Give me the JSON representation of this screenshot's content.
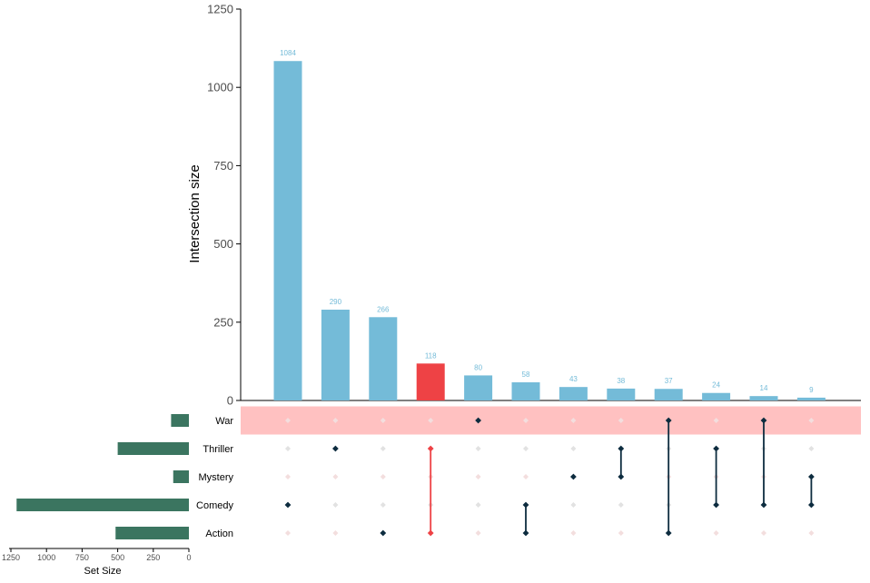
{
  "chart_data": {
    "type": "bar",
    "subtype": "upset",
    "intersections": {
      "ylabel": "Intersection size",
      "ylim": [
        0,
        1250
      ],
      "yticks": [
        "0",
        "250",
        "500",
        "750",
        "1000",
        "1250"
      ],
      "items": [
        {
          "value": 1084,
          "label": "1084",
          "sets": [
            "Comedy"
          ],
          "highlight": false
        },
        {
          "value": 290,
          "label": "290",
          "sets": [
            "Thriller"
          ],
          "highlight": false
        },
        {
          "value": 266,
          "label": "266",
          "sets": [
            "Action"
          ],
          "highlight": false
        },
        {
          "value": 118,
          "label": "118",
          "sets": [
            "Thriller",
            "Action"
          ],
          "highlight": true
        },
        {
          "value": 80,
          "label": "80",
          "sets": [
            "War"
          ],
          "highlight": false
        },
        {
          "value": 58,
          "label": "58",
          "sets": [
            "Comedy",
            "Action"
          ],
          "highlight": false
        },
        {
          "value": 43,
          "label": "43",
          "sets": [
            "Mystery"
          ],
          "highlight": false
        },
        {
          "value": 38,
          "label": "38",
          "sets": [
            "Thriller",
            "Mystery"
          ],
          "highlight": false
        },
        {
          "value": 37,
          "label": "37",
          "sets": [
            "War",
            "Action"
          ],
          "highlight": false
        },
        {
          "value": 24,
          "label": "24",
          "sets": [
            "Thriller",
            "Comedy"
          ],
          "highlight": false
        },
        {
          "value": 14,
          "label": "14",
          "sets": [
            "War",
            "Comedy"
          ],
          "highlight": false
        },
        {
          "value": 9,
          "label": "9",
          "sets": [
            "Mystery",
            "Comedy"
          ],
          "highlight": false
        }
      ]
    },
    "sets": {
      "xlabel": "Set Size",
      "xlim": [
        0,
        1300
      ],
      "xticks": [
        "1250",
        "1000",
        "750",
        "500",
        "250",
        "0"
      ],
      "items": [
        {
          "name": "War",
          "size": 125
        },
        {
          "name": "Thriller",
          "size": 500
        },
        {
          "name": "Mystery",
          "size": 110
        },
        {
          "name": "Comedy",
          "size": 1210
        },
        {
          "name": "Action",
          "size": 515
        }
      ]
    },
    "colors": {
      "bar": "#74bbd8",
      "highlight": "#ee4245",
      "set_bar": "#3b7560",
      "dot": "#0d2c3f",
      "dot_empty": "#e2e2e2",
      "stripe": "#ffc1c1",
      "label": "#74bbd8"
    }
  }
}
